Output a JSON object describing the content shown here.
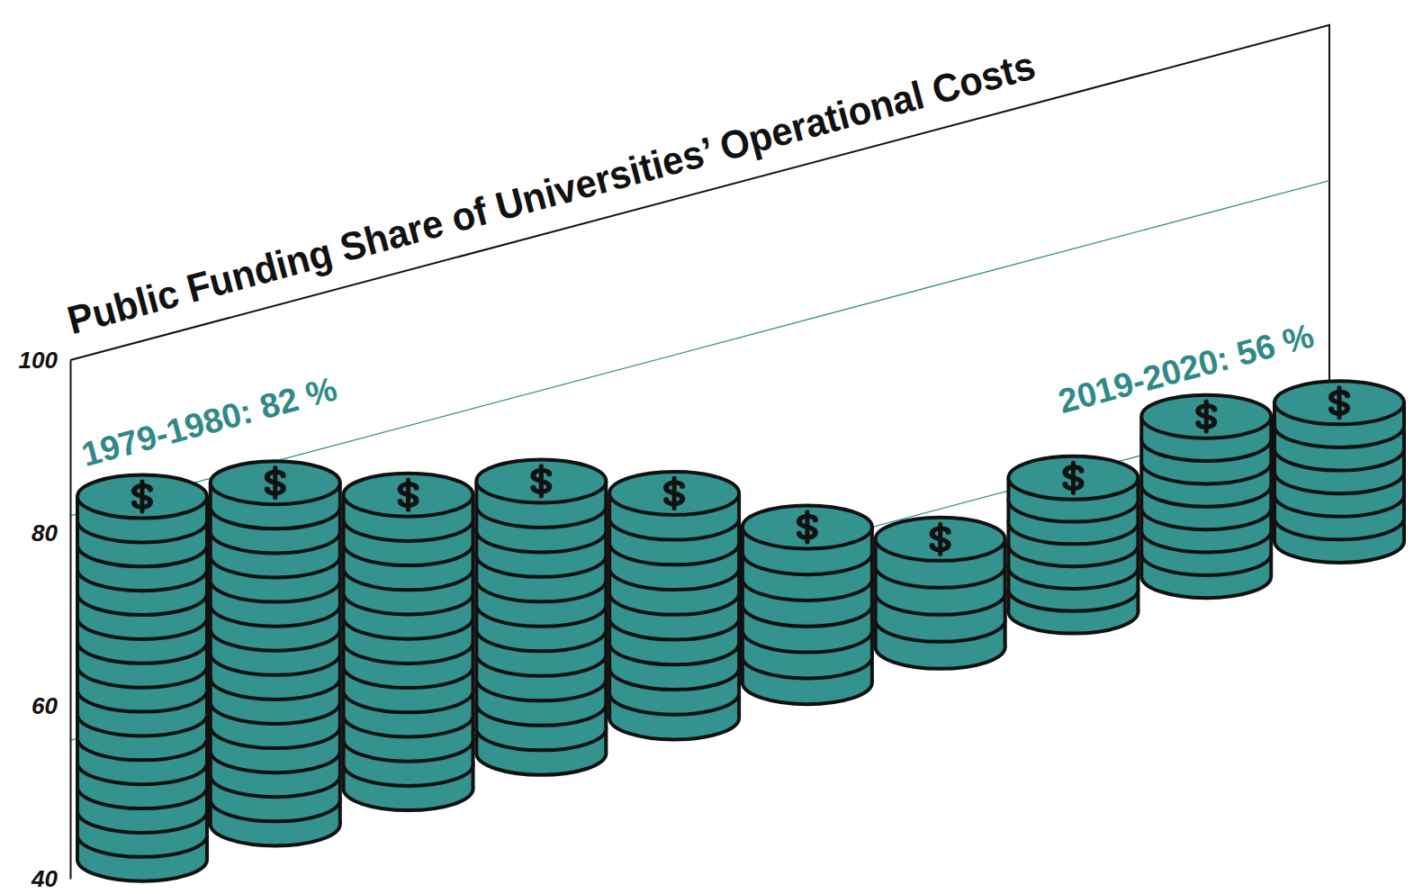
{
  "chart_data": {
    "type": "bar",
    "title": "Public Funding Share of Universities’ Operational Costs",
    "categories": [
      null,
      null,
      null,
      null,
      null,
      null,
      null,
      null,
      null,
      null
    ],
    "values": [
      82,
      79.5,
      74,
      71.5,
      66,
      58,
      52.5,
      55.5,
      58.5,
      56
    ],
    "color": "#34928f",
    "ylim": [
      40,
      100
    ],
    "yticks": [
      40,
      60,
      80,
      100
    ],
    "grid": false,
    "annotations": [
      {
        "text": "1979-1980: 82 %",
        "value": 82
      },
      {
        "text": "2019-2020: 56 %",
        "value": 56
      }
    ]
  }
}
